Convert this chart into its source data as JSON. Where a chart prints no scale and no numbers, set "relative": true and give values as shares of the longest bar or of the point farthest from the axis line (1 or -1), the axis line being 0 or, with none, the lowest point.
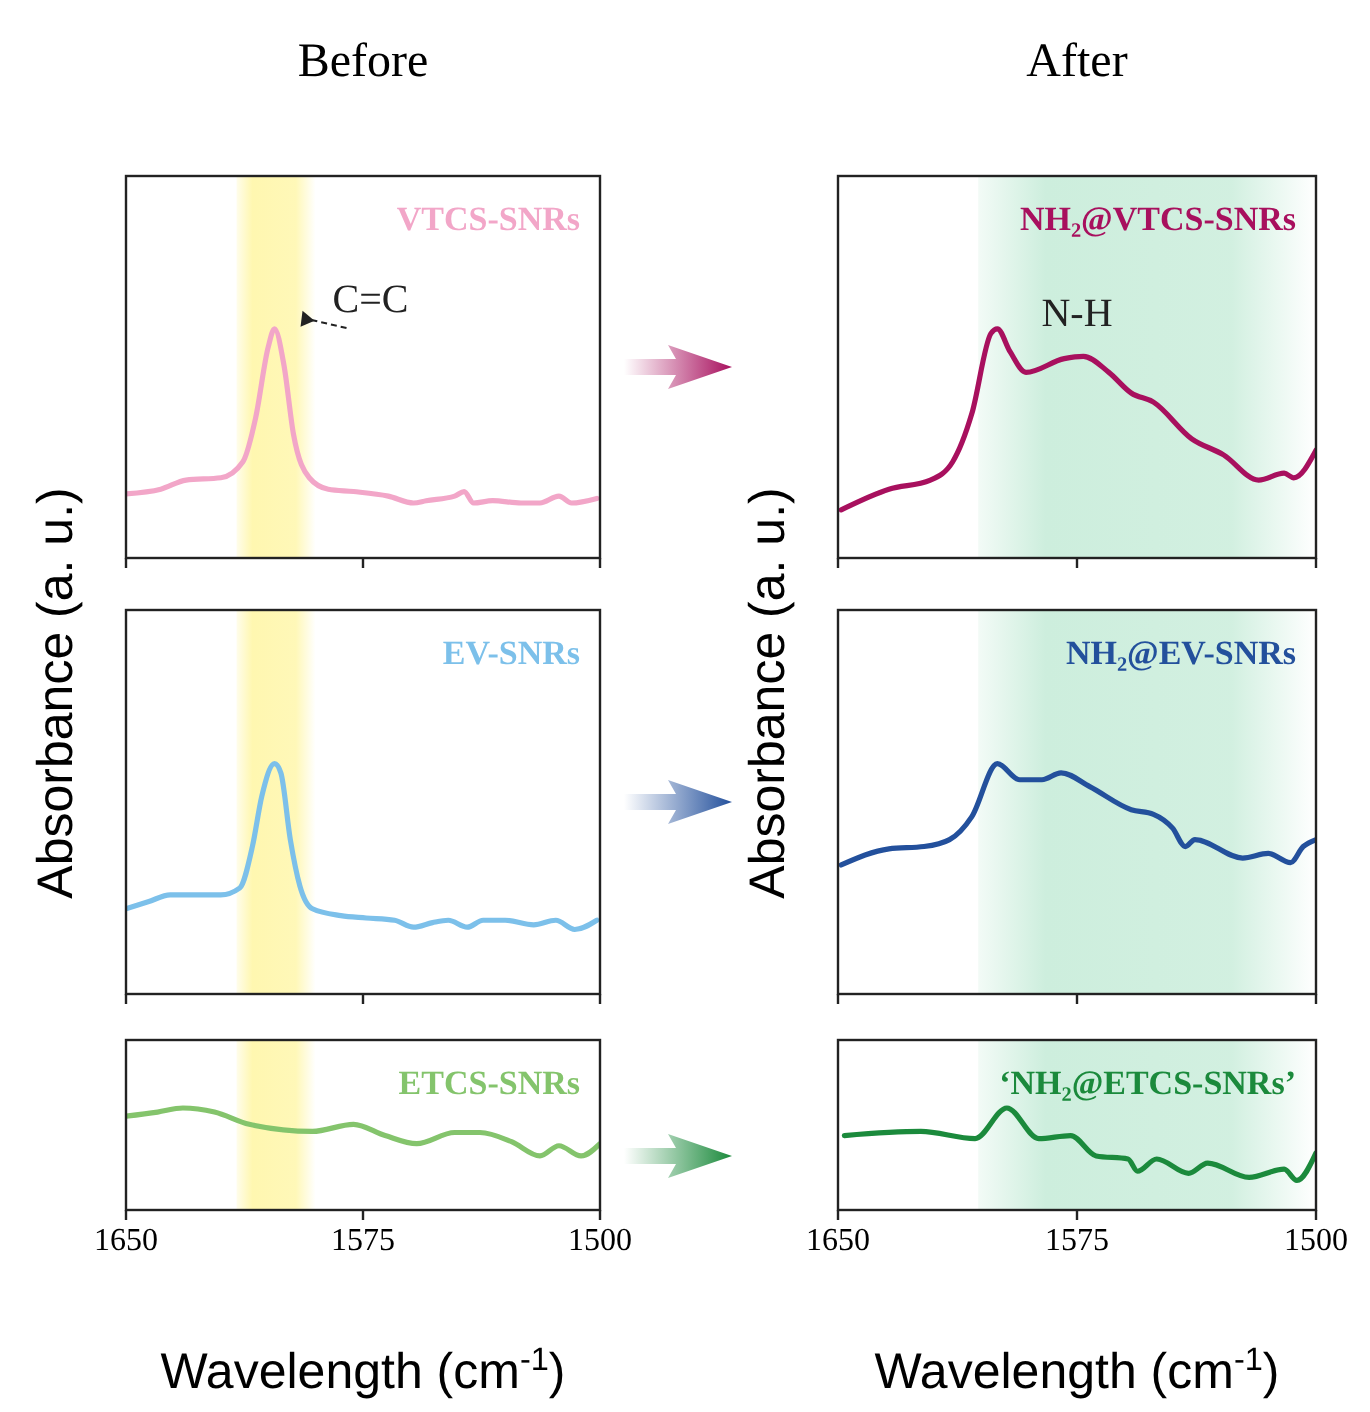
{
  "chart_data": [
    {
      "type": "line",
      "title": "Before",
      "relative": true,
      "xlim": [
        1650,
        1500
      ],
      "xticks": [
        1650,
        1575,
        1500
      ],
      "tick_labels": false,
      "x": [
        1650,
        1639,
        1631,
        1620,
        1613,
        1609,
        1605,
        1603,
        1600,
        1597,
        1592,
        1586,
        1578,
        1567,
        1559,
        1555,
        1546,
        1543,
        1540,
        1534,
        1525,
        1519,
        1513,
        1509,
        1501
      ],
      "series": [
        {
          "name": "VTCS-SNRs",
          "color": "#f2a6c8",
          "values": [
            0.28,
            0.3,
            0.34,
            0.35,
            0.42,
            0.61,
            0.92,
            1,
            0.84,
            0.54,
            0.35,
            0.3,
            0.29,
            0.27,
            0.24,
            0.25,
            0.27,
            0.29,
            0.24,
            0.25,
            0.24,
            0.24,
            0.27,
            0.24,
            0.26
          ]
        }
      ],
      "bands": [
        {
          "axis": "x",
          "from": 1615,
          "to": 1590,
          "color": "#fff7b0"
        }
      ],
      "annotations": [
        {
          "text": "C=C",
          "x": 1603,
          "y": 1
        }
      ]
    },
    {
      "type": "line",
      "title": "After",
      "relative": true,
      "xlim": [
        1650,
        1500
      ],
      "xticks": [
        1650,
        1575,
        1500
      ],
      "tick_labels": false,
      "x": [
        1649,
        1634,
        1621,
        1614,
        1608,
        1602,
        1600,
        1596,
        1591,
        1579,
        1573,
        1565,
        1558,
        1551,
        1539,
        1529,
        1518,
        1510,
        1507,
        1500
      ],
      "series": [
        {
          "name": "NH₂@VTCS-SNRs",
          "color": "#a8105e",
          "values": [
            0.21,
            0.3,
            0.34,
            0.42,
            0.63,
            0.98,
            1,
            0.9,
            0.81,
            0.87,
            0.88,
            0.81,
            0.72,
            0.68,
            0.52,
            0.45,
            0.34,
            0.37,
            0.35,
            0.47
          ]
        }
      ],
      "bands": [
        {
          "axis": "x",
          "from": 1606,
          "to": 1500,
          "color": "#cdeedd"
        }
      ],
      "annotations": [
        "N-H"
      ]
    },
    {
      "type": "line",
      "ylabel": "Absorbance (a. u.)",
      "relative": true,
      "xlim": [
        1650,
        1500
      ],
      "xticks": [
        1650,
        1575,
        1500
      ],
      "tick_labels": false,
      "x": [
        1650,
        1643,
        1636,
        1620,
        1614,
        1610,
        1607,
        1603,
        1601,
        1598,
        1595,
        1591,
        1582,
        1574,
        1565,
        1559,
        1553,
        1548,
        1542,
        1537,
        1530,
        1521,
        1514,
        1508,
        1501
      ],
      "series": [
        {
          "name": "EV-SNRs",
          "color": "#7cc0ea",
          "values": [
            0.37,
            0.4,
            0.43,
            0.43,
            0.46,
            0.64,
            0.86,
            1,
            0.96,
            0.67,
            0.47,
            0.37,
            0.34,
            0.33,
            0.32,
            0.29,
            0.31,
            0.32,
            0.29,
            0.32,
            0.32,
            0.3,
            0.32,
            0.28,
            0.32
          ]
        }
      ],
      "bands": [
        {
          "axis": "x",
          "from": 1615,
          "to": 1590,
          "color": "#fff7b0"
        }
      ]
    },
    {
      "type": "line",
      "ylabel": "Absorbance (a. u.)",
      "relative": true,
      "xlim": [
        1650,
        1500
      ],
      "xticks": [
        1650,
        1575,
        1500
      ],
      "tick_labels": false,
      "x": [
        1649,
        1634,
        1623,
        1615,
        1608,
        1600,
        1593,
        1586,
        1580,
        1571,
        1558,
        1551,
        1545,
        1541,
        1538,
        1523,
        1515,
        1508,
        1504,
        1500
      ],
      "series": [
        {
          "name": "NH₂@EV-SNRs",
          "color": "#23509c",
          "values": [
            0.56,
            0.63,
            0.64,
            0.67,
            0.77,
            1,
            0.93,
            0.93,
            0.96,
            0.9,
            0.8,
            0.78,
            0.72,
            0.64,
            0.67,
            0.59,
            0.61,
            0.57,
            0.64,
            0.67
          ]
        }
      ],
      "bands": [
        {
          "axis": "x",
          "from": 1606,
          "to": 1500,
          "color": "#cdeedd"
        }
      ]
    },
    {
      "type": "line",
      "xlabel": "Wavelength (cm$^{-1}$)",
      "relative": true,
      "xlim": [
        1650,
        1500
      ],
      "xticks": [
        1650,
        1575,
        1500
      ],
      "tick_labels": "x",
      "x": [
        1650,
        1640,
        1632,
        1622,
        1611,
        1591,
        1578,
        1568,
        1558,
        1546,
        1538,
        1528,
        1519,
        1513,
        1506,
        1500
      ],
      "series": [
        {
          "name": "ETCS-SNRs",
          "color": "#84c46c",
          "values": [
            0.92,
            0.96,
            1,
            0.96,
            0.84,
            0.77,
            0.84,
            0.73,
            0.65,
            0.76,
            0.76,
            0.67,
            0.53,
            0.63,
            0.53,
            0.65
          ]
        }
      ],
      "bands": [
        {
          "axis": "x",
          "from": 1615,
          "to": 1590,
          "color": "#fff7b0"
        }
      ]
    },
    {
      "type": "line",
      "xlabel": "Wavelength (cm$^{-1}$)",
      "relative": true,
      "xlim": [
        1650,
        1500
      ],
      "xticks": [
        1650,
        1575,
        1500
      ],
      "tick_labels": "x",
      "x": [
        1648,
        1624,
        1607,
        1597,
        1587,
        1577,
        1569,
        1559,
        1556,
        1550,
        1540,
        1534,
        1521,
        1510,
        1506,
        1500
      ],
      "series": [
        {
          "name": "‘NH₂@ETCS-SNRs’",
          "color": "#1b8a3c",
          "values": [
            0.73,
            0.77,
            0.7,
            1,
            0.7,
            0.73,
            0.53,
            0.5,
            0.38,
            0.5,
            0.36,
            0.46,
            0.32,
            0.4,
            0.29,
            0.56
          ]
        }
      ],
      "bands": [
        {
          "axis": "x",
          "from": 1606,
          "to": 1500,
          "color": "#cdeedd"
        }
      ]
    }
  ]
}
